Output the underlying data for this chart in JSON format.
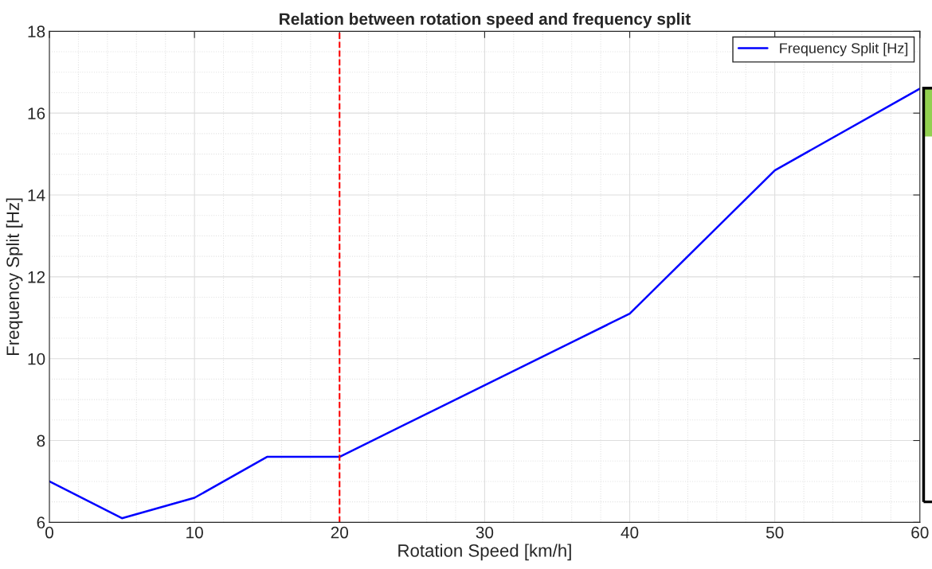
{
  "chart_data": {
    "type": "line",
    "title": "Relation between rotation speed and frequency split",
    "xlabel": "Rotation Speed [km/h]",
    "ylabel": "Frequency Split [Hz]",
    "x": [
      0,
      5,
      10,
      15,
      20,
      36,
      40,
      50,
      60
    ],
    "series": [
      {
        "name": "Frequency Split [Hz]",
        "color": "#0000ff",
        "values": [
          7,
          6.1,
          6.6,
          7.6,
          7.6,
          10.4,
          11.1,
          14.6,
          16.6
        ]
      }
    ],
    "xlim": [
      0,
      60
    ],
    "xticks": [
      0,
      10,
      20,
      30,
      40,
      50,
      60
    ],
    "ylim": [
      6,
      18
    ],
    "yticks": [
      6,
      8,
      10,
      12,
      14,
      16,
      18
    ],
    "ref_lines": [
      {
        "axis": "x",
        "value": 20,
        "color": "#ff0000",
        "line_style": "dashed"
      }
    ],
    "grid": true,
    "legend": "top right",
    "line_style": "solid"
  }
}
